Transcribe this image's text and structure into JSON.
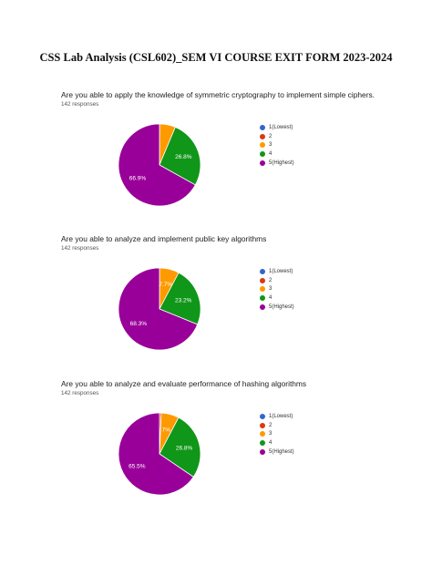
{
  "page": {
    "title": "CSS Lab Analysis (CSL602)_SEM VI COURSE EXIT FORM 2023-2024"
  },
  "palette": {
    "1(Lowest)": "#3366cc",
    "2": "#dc3912",
    "3": "#ff9900",
    "4": "#109618",
    "5(Highest)": "#990099"
  },
  "chart_data": [
    {
      "type": "pie",
      "title": "Are you able to apply the knowledge of symmetric cryptography to implement simple ciphers.",
      "subtitle": "142 responses",
      "legend_position": "right",
      "categories": [
        "1(Lowest)",
        "2",
        "3",
        "4",
        "5(Highest)"
      ],
      "values": [
        0,
        0,
        6.3,
        26.8,
        66.9
      ],
      "labels": [
        "",
        "",
        "",
        "26.8%",
        "66.9%"
      ]
    },
    {
      "type": "pie",
      "title": "Are you able to analyze and implement public key algorithms",
      "subtitle": "142 responses",
      "legend_position": "right",
      "categories": [
        "1(Lowest)",
        "2",
        "3",
        "4",
        "5(Highest)"
      ],
      "values": [
        0,
        0,
        7.7,
        23.2,
        68.3
      ],
      "labels": [
        "",
        "",
        "7.7%",
        "23.2%",
        "68.3%"
      ]
    },
    {
      "type": "pie",
      "title": "Are you able to  analyze and evaluate performance of hashing algorithms",
      "subtitle": "142 responses",
      "legend_position": "right",
      "categories": [
        "1(Lowest)",
        "2",
        "3",
        "4",
        "5(Highest)"
      ],
      "values": [
        0,
        0.7,
        7,
        26.8,
        65.5
      ],
      "labels": [
        "",
        "",
        "7%",
        "26.8%",
        "65.5%"
      ]
    }
  ]
}
